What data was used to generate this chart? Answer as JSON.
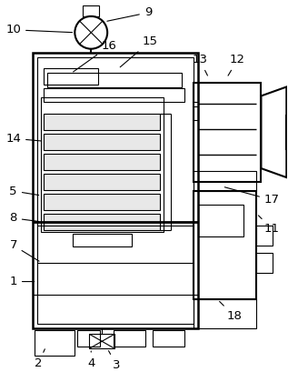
{
  "bg_color": "#ffffff",
  "line_color": "#000000",
  "lw": 1.5,
  "tlw": 0.8,
  "fig_width": 3.17,
  "fig_height": 4.2,
  "dpi": 100
}
